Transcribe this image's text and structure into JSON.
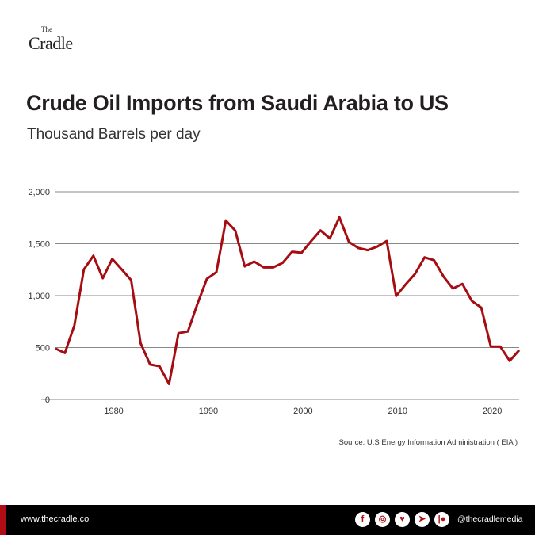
{
  "logo": {
    "the": "The",
    "name": "Cradle"
  },
  "title": "Crude Oil Imports from Saudi Arabia to US",
  "subtitle": "Thousand Barrels per day",
  "source": "Source: U.S Energy Information Administration ( EIA )",
  "footer": {
    "site": "www.thecradle.co",
    "handle": "@thecradlemedia",
    "socials": [
      {
        "icon": "facebook-icon",
        "glyph": "f"
      },
      {
        "icon": "instagram-icon",
        "glyph": "◎"
      },
      {
        "icon": "twitter-icon",
        "glyph": "♥"
      },
      {
        "icon": "telegram-icon",
        "glyph": "➤"
      },
      {
        "icon": "patreon-icon",
        "glyph": "|●"
      }
    ]
  },
  "colors": {
    "line": "#a50d12",
    "grid": "#888888",
    "accent": "#b00d14"
  },
  "chart_data": {
    "type": "line",
    "title": "Crude Oil Imports from Saudi Arabia to US",
    "subtitle": "Thousand Barrels per day",
    "xlim": [
      1973,
      2022
    ],
    "ylim": [
      0,
      2000
    ],
    "grid": true,
    "x_ticks": [
      1980,
      1990,
      2000,
      2010,
      2020
    ],
    "x_tick_labels": [
      "1980",
      "1990",
      "2000",
      "2010",
      "2020"
    ],
    "y_ticks": [
      0,
      500,
      1000,
      1500,
      2000
    ],
    "y_tick_labels": [
      "0",
      "500",
      "1,000",
      "1,500",
      "2,000"
    ],
    "x": [
      1973,
      1974,
      1975,
      1976,
      1977,
      1978,
      1979,
      1980,
      1981,
      1982,
      1983,
      1984,
      1985,
      1986,
      1987,
      1988,
      1989,
      1990,
      1991,
      1992,
      1993,
      1994,
      1995,
      1996,
      1997,
      1998,
      1999,
      2000,
      2001,
      2002,
      2003,
      2004,
      2005,
      2006,
      2007,
      2008,
      2009,
      2010,
      2011,
      2012,
      2013,
      2014,
      2015,
      2016,
      2017,
      2018,
      2019,
      2020,
      2021,
      2022
    ],
    "series": [
      {
        "values": [
          490,
          447,
          715,
          1252,
          1384,
          1167,
          1354,
          1252,
          1149,
          541,
          337,
          319,
          148,
          639,
          656,
          920,
          1162,
          1226,
          1724,
          1627,
          1282,
          1328,
          1272,
          1272,
          1315,
          1423,
          1413,
          1523,
          1628,
          1551,
          1754,
          1518,
          1459,
          1438,
          1472,
          1526,
          997,
          1108,
          1210,
          1369,
          1341,
          1185,
          1069,
          1113,
          949,
          885,
          510,
          510,
          372,
          474
        ]
      }
    ]
  }
}
